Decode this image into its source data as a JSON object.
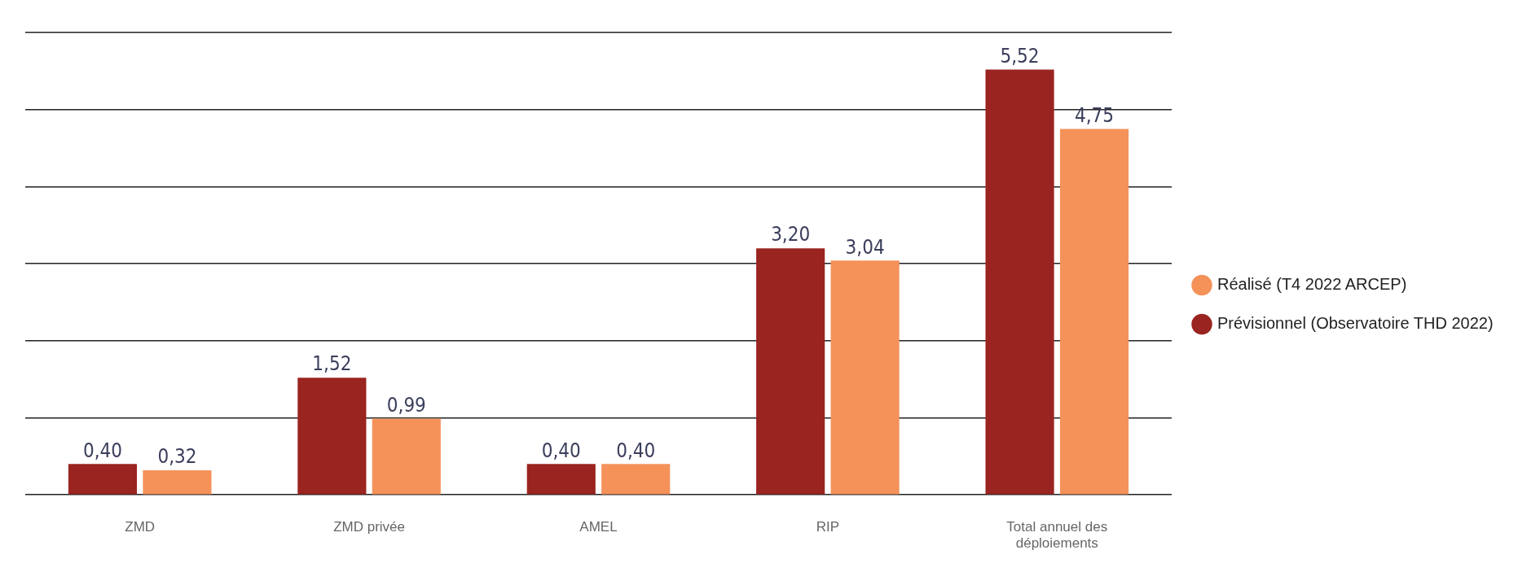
{
  "chart_data": {
    "type": "bar",
    "categories": [
      "ZMD",
      "ZMD privée",
      "AMEL",
      "RIP",
      "Total annuel des déploiements"
    ],
    "series": [
      {
        "name": "Prévisionnel (Observatoire THD 2022)",
        "color": "#9a2420",
        "values": [
          0.4,
          1.52,
          0.4,
          3.2,
          5.52
        ],
        "value_labels": [
          "0,40",
          "1,52",
          "0,40",
          "3,20",
          "5,52"
        ]
      },
      {
        "name": "Réalisé (T4 2022 ARCEP)",
        "color": "#f4925a",
        "values": [
          0.32,
          0.99,
          0.4,
          3.04,
          4.75
        ],
        "value_labels": [
          "0,32",
          "0,99",
          "0,40",
          "3,04",
          "4,75"
        ]
      }
    ],
    "grid": "y",
    "legend": "right"
  }
}
